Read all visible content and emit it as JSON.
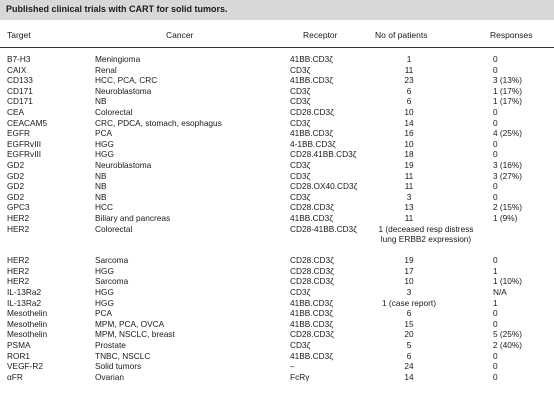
{
  "title": "Published clinical trials with CART for solid tumors.",
  "headers": {
    "target": "Target",
    "cancer": "Cancer",
    "receptor": "Receptor",
    "patients": "No of patients",
    "responses": "Responses"
  },
  "rows": [
    {
      "target": "B7-H3",
      "cancer": "Meningioma",
      "receptor": "41BB.CD3ζ",
      "patients": "1",
      "responses": "0"
    },
    {
      "target": "CAIX",
      "cancer": "Renal",
      "receptor": "CD3ζ",
      "patients": "11",
      "responses": "0"
    },
    {
      "target": "CD133",
      "cancer": "HCC, PCA, CRC",
      "receptor": "41BB.CD3ζ",
      "patients": "23",
      "responses": "3 (13%)"
    },
    {
      "target": "CD171",
      "cancer": "Neuroblastoma",
      "receptor": "CD3ζ",
      "patients": "6",
      "responses": "1 (17%)"
    },
    {
      "target": "CD171",
      "cancer": "NB",
      "receptor": "CD3ζ",
      "patients": "6",
      "responses": "1 (17%)"
    },
    {
      "target": "CEA",
      "cancer": "Colorectal",
      "receptor": "CD28.CD3ζ",
      "patients": "10",
      "responses": "0"
    },
    {
      "target": "CEACAM5",
      "cancer": "CRC, PDCA, stomach, esophagus",
      "receptor": "CD3ζ",
      "patients": "14",
      "responses": "0"
    },
    {
      "target": "EGFR",
      "cancer": "PCA",
      "receptor": "41BB.CD3ζ",
      "patients": "16",
      "responses": "4 (25%)"
    },
    {
      "target": "EGFRvIII",
      "cancer": "HGG",
      "receptor": "4-1BB.CD3ζ",
      "patients": "10",
      "responses": "0"
    },
    {
      "target": "EGFRvIII",
      "cancer": "HGG",
      "receptor": "CD28.41BB.CD3ζ",
      "patients": "18",
      "responses": "0"
    },
    {
      "target": "GD2",
      "cancer": "Neuroblastoma",
      "receptor": "CD3ζ",
      "patients": "19",
      "responses": "3 (16%)"
    },
    {
      "target": "GD2",
      "cancer": "NB",
      "receptor": "CD3ζ",
      "patients": "11",
      "responses": "3 (27%)"
    },
    {
      "target": "GD2",
      "cancer": "NB",
      "receptor": "CD28.OX40.CD3ζ",
      "patients": "11",
      "responses": "0"
    },
    {
      "target": "GD2",
      "cancer": "NB",
      "receptor": "CD3ζ",
      "patients": "3",
      "responses": "0"
    },
    {
      "target": "GPC3",
      "cancer": "HCC",
      "receptor": "CD28.CD3ζ",
      "patients": "13",
      "responses": "2 (15%)"
    },
    {
      "target": "HER2",
      "cancer": "Biliary and pancreas",
      "receptor": "41BB.CD3ζ",
      "patients": "11",
      "responses": "1 (9%)"
    },
    {
      "target": "HER2",
      "cancer": "Colorectal",
      "receptor": "CD28-41BB.CD3ζ",
      "patients": "1 (deceased resp distress lung ERBB2 expression)",
      "responses": "",
      "multi": true
    },
    {
      "target": "HER2",
      "cancer": "Sarcoma",
      "receptor": "CD28.CD3ζ",
      "patients": "19",
      "responses": "0"
    },
    {
      "target": "HER2",
      "cancer": "HGG",
      "receptor": "CD28.CD3ζ",
      "patients": "17",
      "responses": "1"
    },
    {
      "target": "HER2",
      "cancer": "Sarcoma",
      "receptor": "CD28.CD3ζ",
      "patients": "10",
      "responses": "1 (10%)"
    },
    {
      "target": "IL-13Ra2",
      "cancer": "HGG",
      "receptor": "CD3ζ",
      "patients": "3",
      "responses": "N/A"
    },
    {
      "target": "IL-13Ra2",
      "cancer": "HGG",
      "receptor": "41BB.CD3ζ",
      "patients": "1 (case report)",
      "responses": "1"
    },
    {
      "target": "Mesothelin",
      "cancer": "PCA",
      "receptor": "41BB.CD3ζ",
      "patients": "6",
      "responses": "0"
    },
    {
      "target": "Mesothelin",
      "cancer": "MPM, PCA, OVCA",
      "receptor": "41BB.CD3ζ",
      "patients": "15",
      "responses": "0"
    },
    {
      "target": "Mesothelin",
      "cancer": "MPM, NSCLC, breast",
      "receptor": "CD28.CD3ζ",
      "patients": "20",
      "responses": "5 (25%)"
    },
    {
      "target": "PSMA",
      "cancer": "Prostate",
      "receptor": "CD3ζ",
      "patients": "5",
      "responses": "2 (40%)"
    },
    {
      "target": "ROR1",
      "cancer": "TNBC, NSCLC",
      "receptor": "41BB.CD3ζ",
      "patients": "6",
      "responses": "0"
    },
    {
      "target": "VEGF-R2",
      "cancer": "Solid tumors",
      "receptor": "–",
      "patients": "24",
      "responses": "0"
    },
    {
      "target": "αFR",
      "cancer": "Ovarian",
      "receptor": "FcRγ",
      "patients": "14",
      "responses": "0"
    }
  ]
}
